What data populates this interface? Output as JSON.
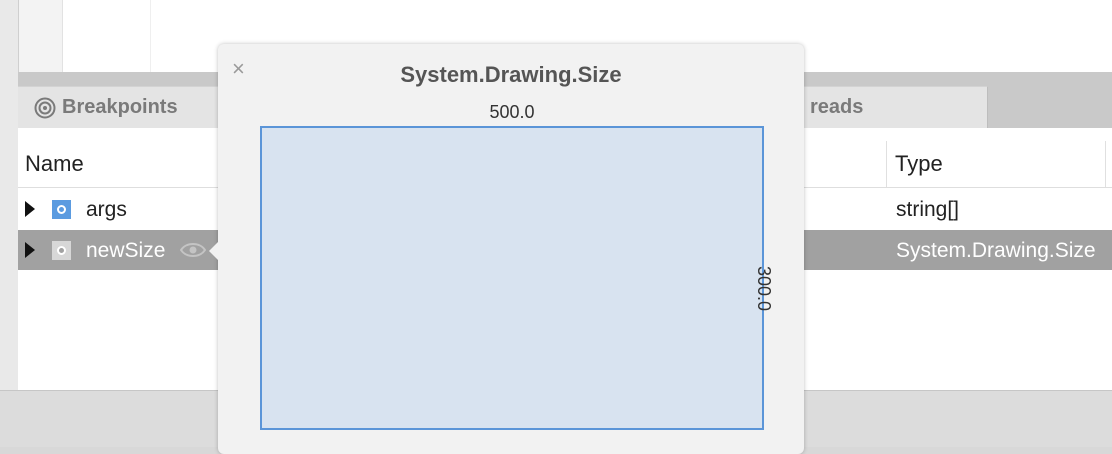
{
  "panel": {
    "tabs": [
      {
        "label": "Breakpoints"
      },
      {
        "label": "reads"
      }
    ],
    "columns": {
      "name": "Name",
      "type": "Type"
    },
    "rows": [
      {
        "name": "args",
        "type": "string[]",
        "icon": "field-icon"
      },
      {
        "name": "newSize",
        "type": "System.Drawing.Size",
        "icon": "field-icon",
        "selected": true
      }
    ]
  },
  "visualizer": {
    "title": "System.Drawing.Size",
    "close_glyph": "×",
    "width_label": "500.0",
    "height_label": "300.0"
  },
  "colors": {
    "selection": "#a1a1a1",
    "accent": "#5b95d8",
    "rect_fill": "#d8e3f0"
  }
}
